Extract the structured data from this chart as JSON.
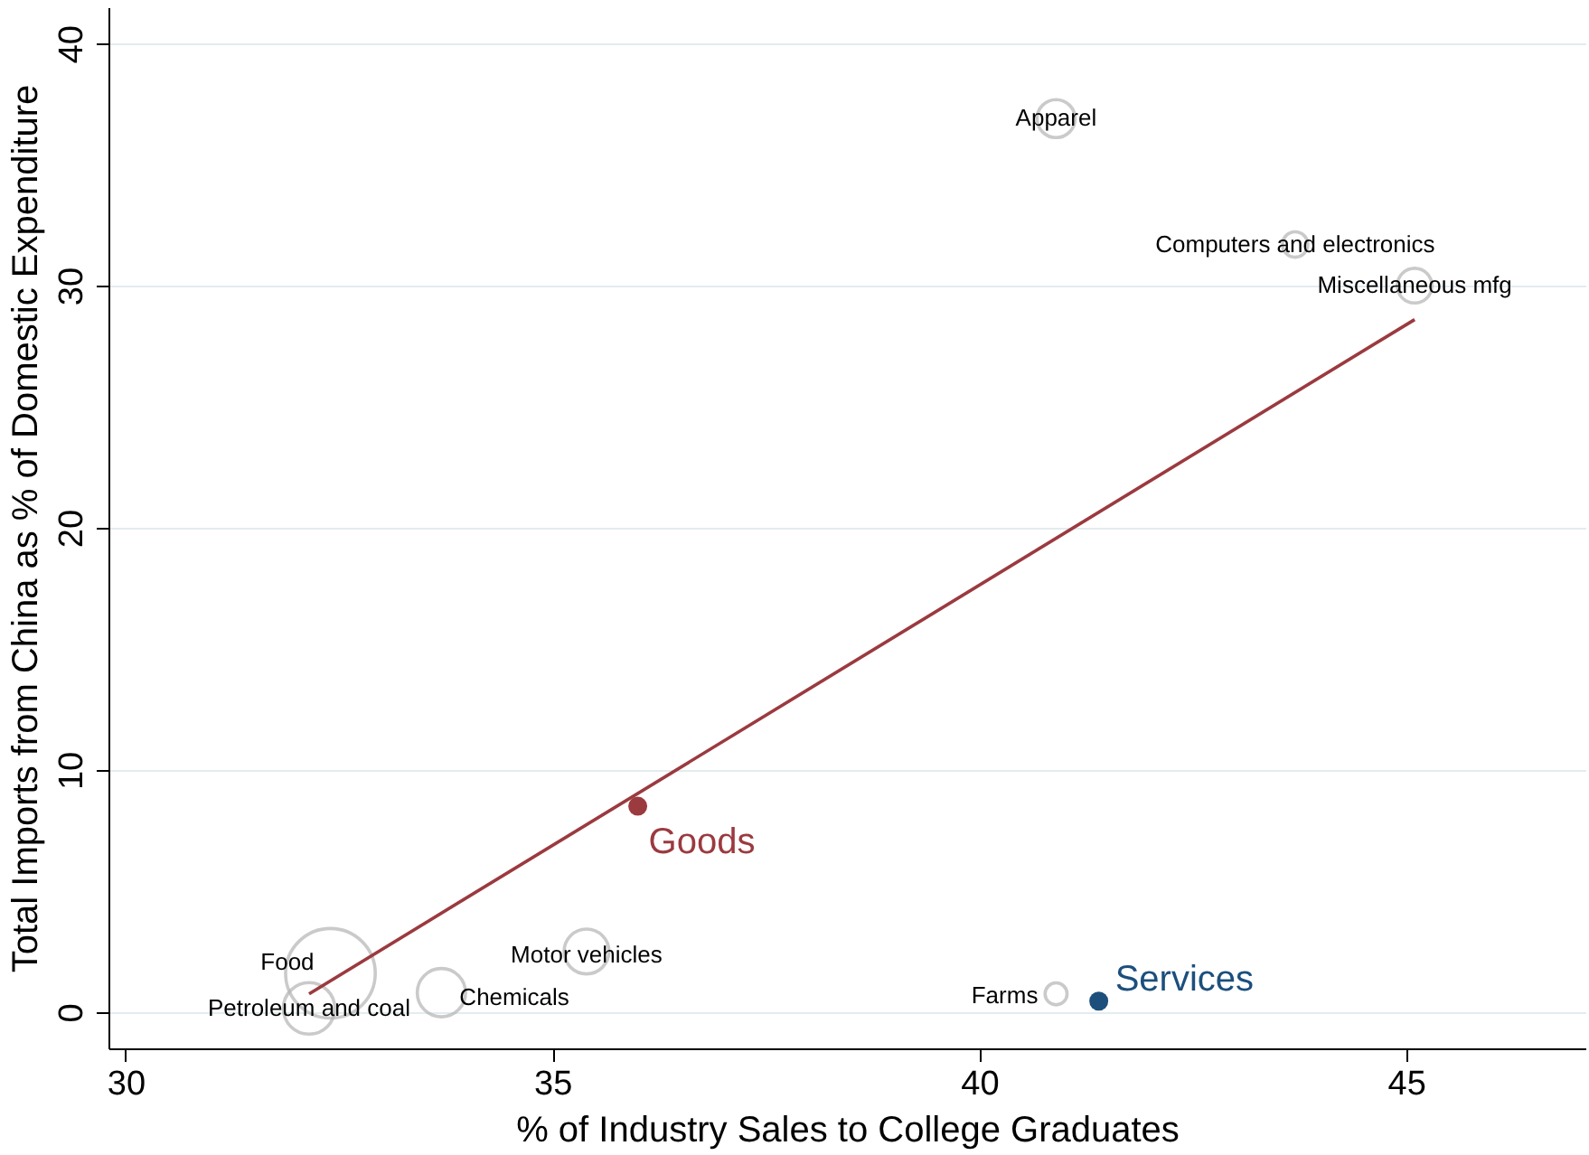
{
  "chart_data": {
    "type": "bubble",
    "xlabel": "% of Industry Sales to College Graduates",
    "ylabel": "Total Imports from China as % of Domestic Expenditure",
    "xlim": [
      29.8,
      47.1
    ],
    "ylim": [
      -1.5,
      41.5
    ],
    "xticks": [
      30,
      35,
      40,
      45
    ],
    "yticks": [
      0,
      10,
      20,
      30,
      40
    ],
    "grid": "y",
    "series": [
      {
        "color": "#b4b4b4",
        "x": [
          40.9,
          43.7,
          45.1,
          32.4,
          32.15,
          33.7,
          35.4,
          40.9
        ],
        "values": [
          36.9,
          31.7,
          30.0,
          1.6,
          0.15,
          0.8,
          2.5,
          0.75
        ],
        "sizes": [
          0.18,
          0.08,
          0.15,
          1,
          0.33,
          0.29,
          0.25,
          0.06
        ]
      },
      {
        "type": "scatter",
        "name": "Goods",
        "color": "#9b3a3f",
        "x": [
          36.0
        ],
        "values": [
          8.5
        ]
      },
      {
        "type": "scatter",
        "name": "Services",
        "color": "#1c4f7c",
        "x": [
          41.4
        ],
        "values": [
          0.45
        ]
      },
      {
        "type": "line",
        "color": "#9b3a3f",
        "x": [
          32.15,
          45.1
        ],
        "values": [
          0.75,
          28.6
        ]
      }
    ],
    "annotations": [
      {
        "text": "Apparel",
        "x": 40.9,
        "y": 36.9
      },
      {
        "text": "Computers and electronics",
        "x": 43.7,
        "y": 31.7
      },
      {
        "text": "Miscellaneous mfg",
        "x": 45.1,
        "y": 30.0
      },
      {
        "text": "Food",
        "x": 32.4,
        "y": 1.6
      },
      {
        "text": "Petroleum and coal",
        "x": 32.15,
        "y": 0.15
      },
      {
        "text": "Chemicals",
        "x": 33.7,
        "y": 0.8
      },
      {
        "text": "Motor vehicles",
        "x": 35.4,
        "y": 2.5
      },
      {
        "text": "Farms",
        "x": 40.9,
        "y": 0.75
      }
    ]
  }
}
